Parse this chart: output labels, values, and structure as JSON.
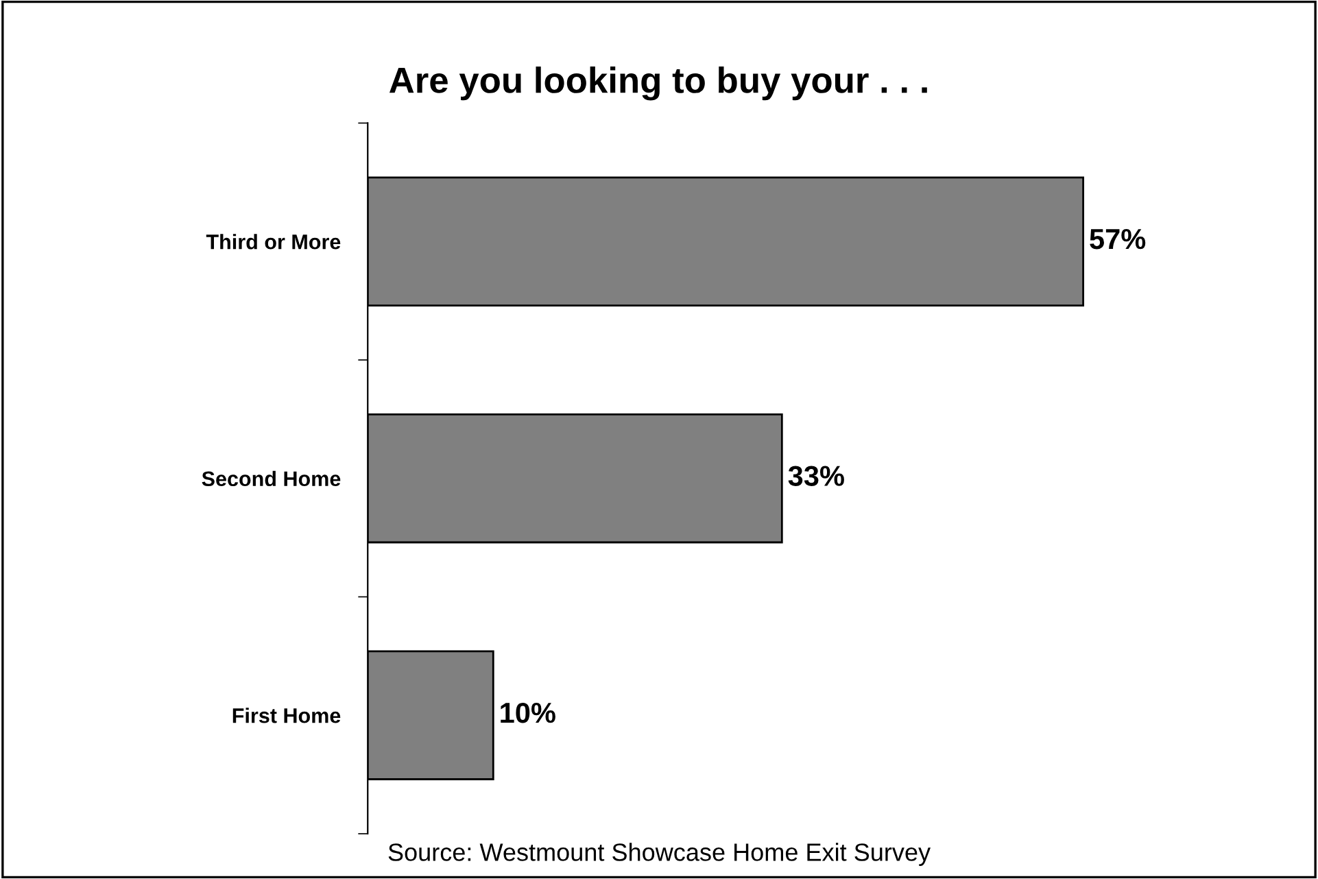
{
  "chart_data": {
    "type": "bar",
    "orientation": "horizontal",
    "title": "Are you looking to buy your . . .",
    "categories": [
      "Third or More",
      "Second Home",
      "First Home"
    ],
    "values": [
      57,
      33,
      10
    ],
    "value_labels": [
      "57%",
      "33%",
      "10%"
    ],
    "color": "#808080",
    "tick_labels": "y",
    "grid": false,
    "annotations": [
      "Source: Westmount Showcase Home Exit Survey"
    ]
  }
}
